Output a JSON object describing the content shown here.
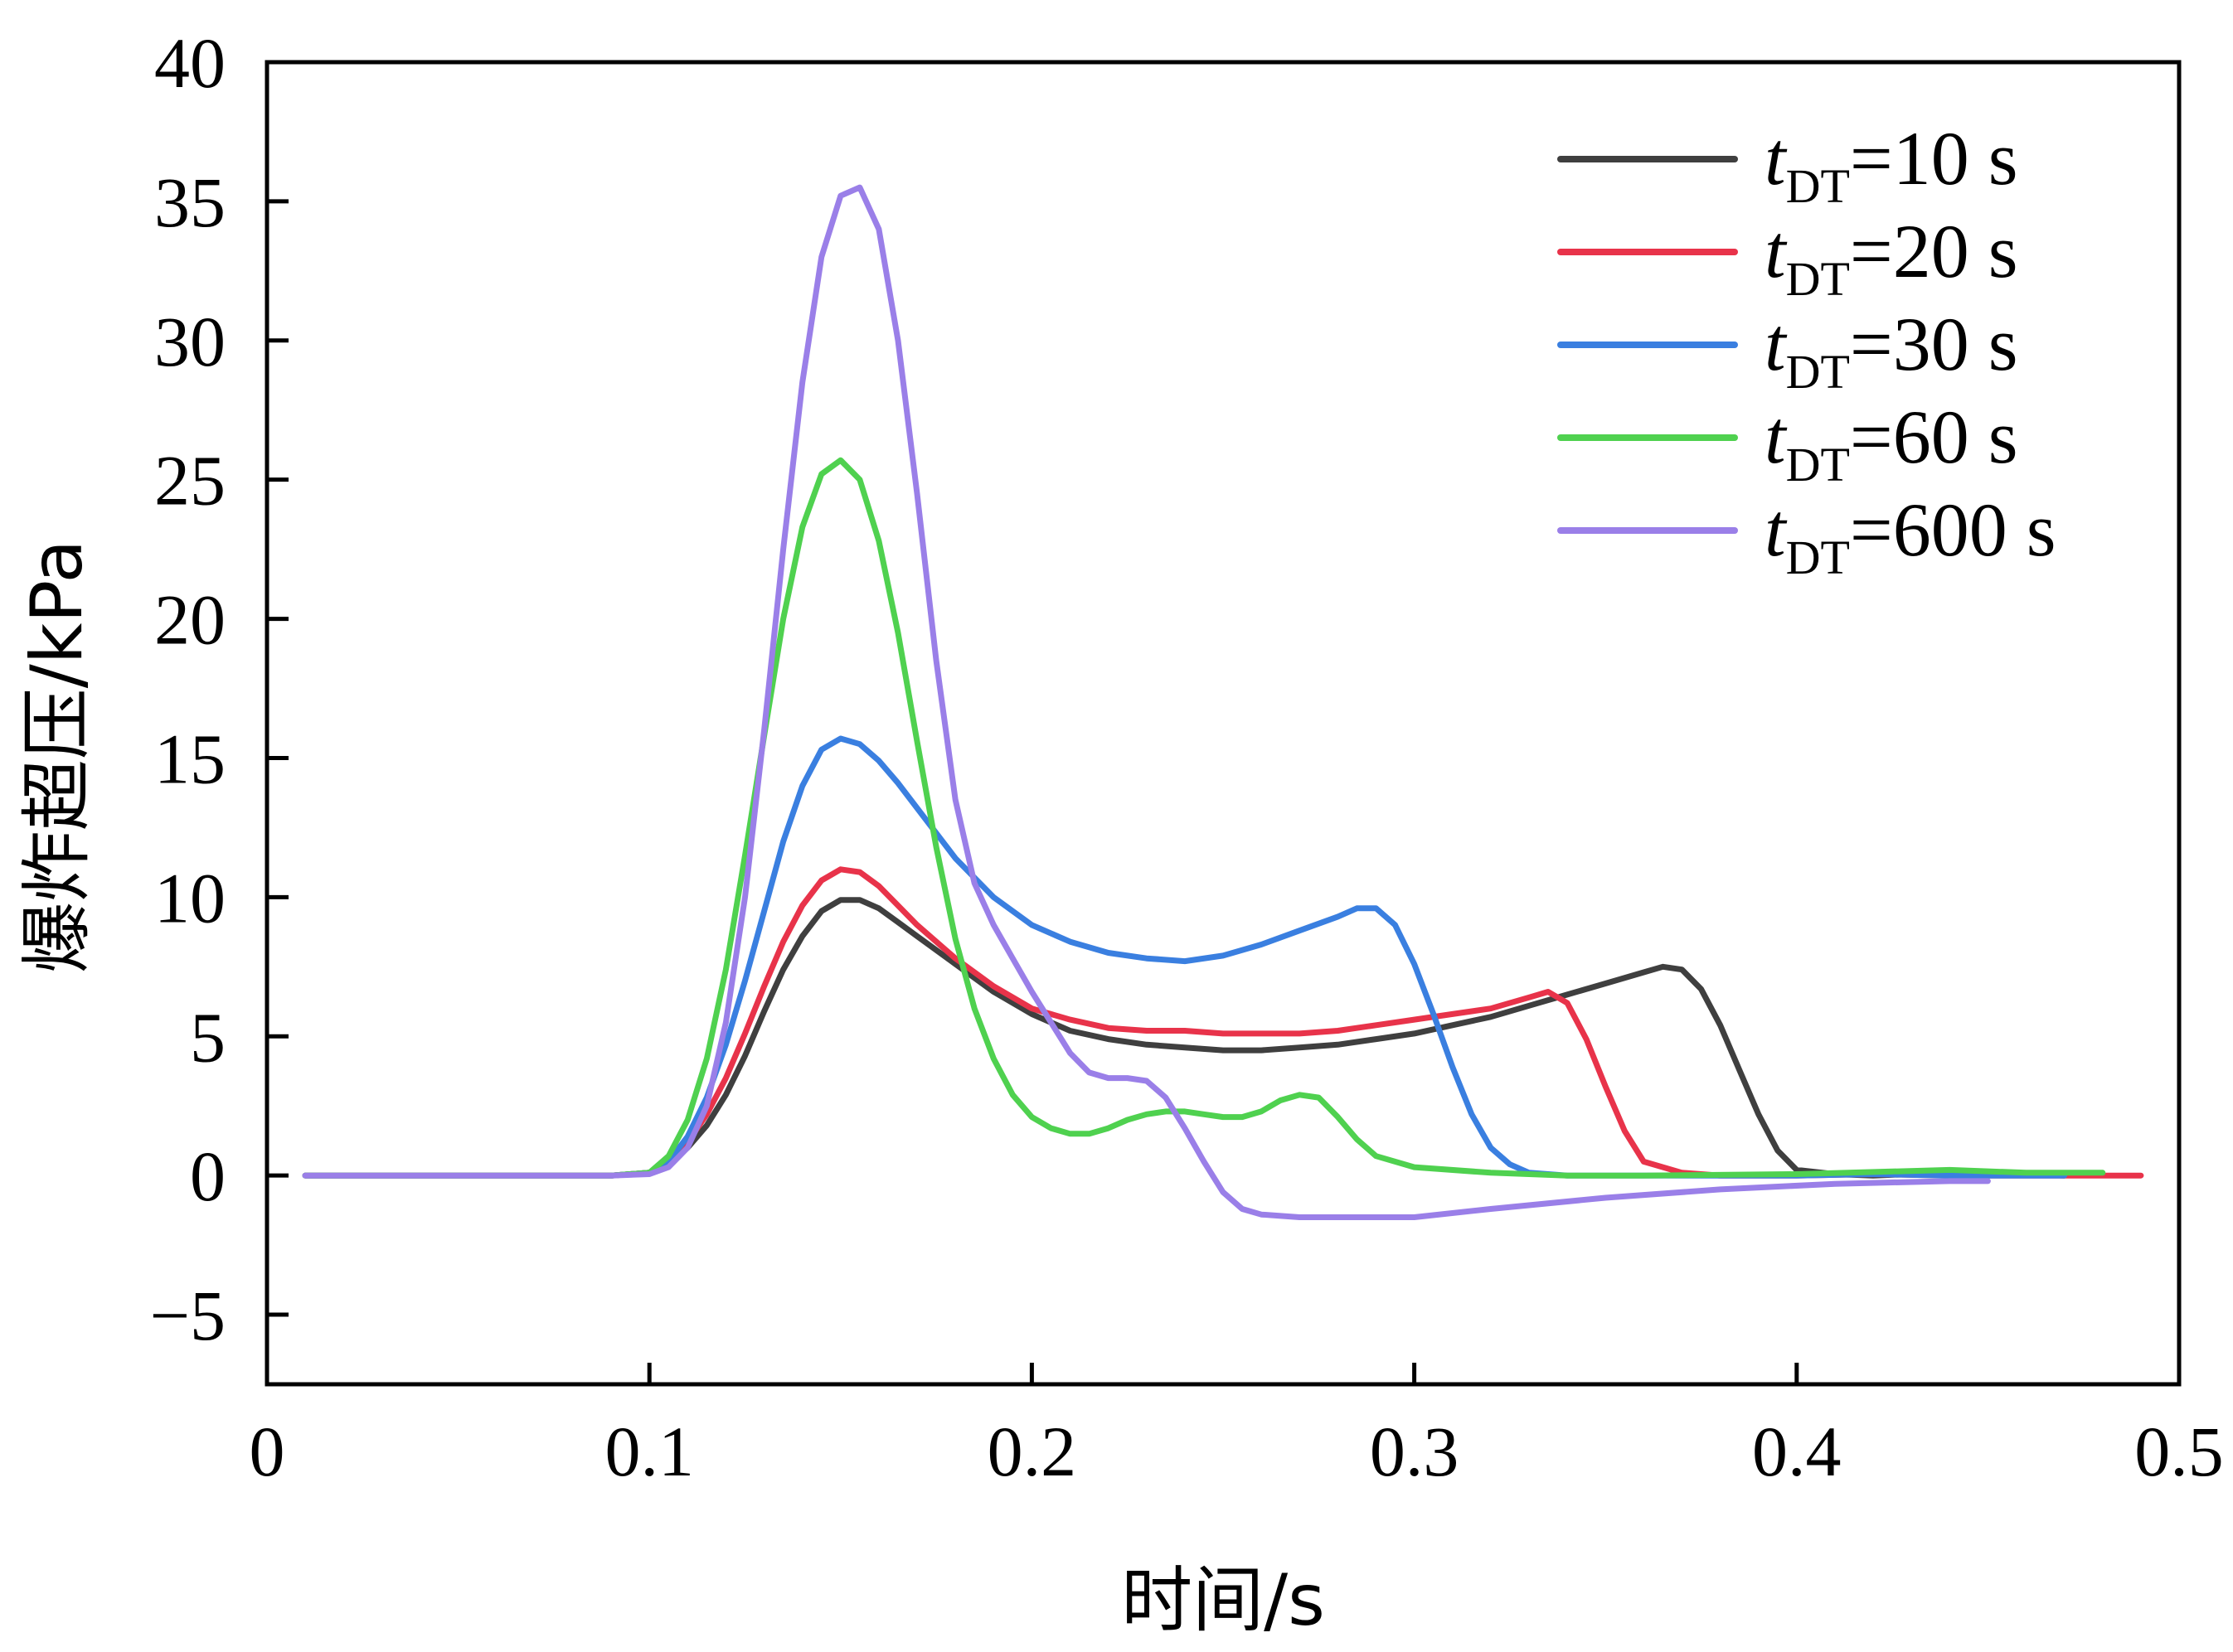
{
  "chart_data": {
    "type": "line",
    "title": "",
    "xlabel": "时间/s",
    "ylabel": "爆炸超压/kPa",
    "xlim": [
      0,
      0.5
    ],
    "ylim": [
      -7.5,
      40
    ],
    "xticks": [
      0,
      0.1,
      0.2,
      0.3,
      0.4,
      0.5
    ],
    "xtick_labels": [
      "0",
      "0.1",
      "0.2",
      "0.3",
      "0.4",
      "0.5"
    ],
    "yticks": [
      -5,
      0,
      5,
      10,
      15,
      20,
      25,
      30,
      35,
      40
    ],
    "ytick_labels": [
      "−5",
      "0",
      "5",
      "10",
      "15",
      "20",
      "25",
      "30",
      "35",
      "40"
    ],
    "grid": false,
    "legend_position": "top-right",
    "series": [
      {
        "name": "tDT=10 s",
        "legend": {
          "var": "t",
          "sub": "DT",
          "rest": "=10 s"
        },
        "color": "#3f3f3f",
        "x": [
          0.01,
          0.05,
          0.09,
          0.1,
          0.105,
          0.11,
          0.115,
          0.12,
          0.125,
          0.13,
          0.135,
          0.14,
          0.145,
          0.15,
          0.155,
          0.16,
          0.165,
          0.17,
          0.18,
          0.19,
          0.2,
          0.21,
          0.22,
          0.23,
          0.24,
          0.25,
          0.26,
          0.27,
          0.28,
          0.29,
          0.3,
          0.31,
          0.32,
          0.33,
          0.34,
          0.35,
          0.36,
          0.365,
          0.37,
          0.375,
          0.38,
          0.385,
          0.39,
          0.395,
          0.4,
          0.41,
          0.42,
          0.44,
          0.46,
          0.47
        ],
        "y": [
          0,
          0,
          0,
          0.1,
          0.4,
          1.0,
          1.8,
          2.9,
          4.3,
          5.9,
          7.4,
          8.6,
          9.5,
          9.9,
          9.9,
          9.6,
          9.1,
          8.6,
          7.6,
          6.6,
          5.8,
          5.2,
          4.9,
          4.7,
          4.6,
          4.5,
          4.5,
          4.6,
          4.7,
          4.9,
          5.1,
          5.4,
          5.7,
          6.1,
          6.5,
          6.9,
          7.3,
          7.5,
          7.4,
          6.7,
          5.4,
          3.8,
          2.2,
          0.9,
          0.2,
          0.05,
          0,
          0.1,
          0.05,
          0
        ]
      },
      {
        "name": "tDT=20 s",
        "legend": {
          "var": "t",
          "sub": "DT",
          "rest": "=20 s"
        },
        "color": "#e8334a",
        "x": [
          0.01,
          0.05,
          0.09,
          0.1,
          0.105,
          0.11,
          0.115,
          0.12,
          0.125,
          0.13,
          0.135,
          0.14,
          0.145,
          0.15,
          0.155,
          0.16,
          0.165,
          0.17,
          0.18,
          0.19,
          0.2,
          0.21,
          0.22,
          0.23,
          0.24,
          0.25,
          0.26,
          0.27,
          0.28,
          0.29,
          0.3,
          0.31,
          0.32,
          0.33,
          0.335,
          0.34,
          0.345,
          0.35,
          0.355,
          0.36,
          0.37,
          0.38,
          0.4,
          0.42,
          0.44,
          0.46,
          0.48,
          0.49
        ],
        "y": [
          0,
          0,
          0,
          0.1,
          0.5,
          1.2,
          2.2,
          3.5,
          5.1,
          6.8,
          8.4,
          9.7,
          10.6,
          11.0,
          10.9,
          10.4,
          9.7,
          9.0,
          7.8,
          6.8,
          6.0,
          5.6,
          5.3,
          5.2,
          5.2,
          5.1,
          5.1,
          5.1,
          5.2,
          5.4,
          5.6,
          5.8,
          6.0,
          6.4,
          6.6,
          6.2,
          4.9,
          3.2,
          1.6,
          0.5,
          0.1,
          0,
          0,
          0.05,
          0,
          0,
          0,
          0
        ]
      },
      {
        "name": "tDT=30 s",
        "legend": {
          "var": "t",
          "sub": "DT",
          "rest": "=30 s"
        },
        "color": "#3a7fe0",
        "x": [
          0.01,
          0.05,
          0.09,
          0.1,
          0.105,
          0.11,
          0.115,
          0.12,
          0.125,
          0.13,
          0.135,
          0.14,
          0.145,
          0.15,
          0.155,
          0.16,
          0.165,
          0.17,
          0.175,
          0.18,
          0.19,
          0.2,
          0.21,
          0.22,
          0.23,
          0.24,
          0.25,
          0.26,
          0.27,
          0.28,
          0.285,
          0.29,
          0.295,
          0.3,
          0.305,
          0.31,
          0.315,
          0.32,
          0.325,
          0.33,
          0.34,
          0.36,
          0.38,
          0.4,
          0.42,
          0.44,
          0.46,
          0.47
        ],
        "y": [
          0,
          0,
          0,
          0.1,
          0.5,
          1.4,
          2.8,
          4.7,
          7.0,
          9.5,
          12.0,
          14.0,
          15.3,
          15.7,
          15.5,
          14.9,
          14.1,
          13.2,
          12.3,
          11.4,
          10.0,
          9.0,
          8.4,
          8.0,
          7.8,
          7.7,
          7.9,
          8.3,
          8.8,
          9.3,
          9.6,
          9.6,
          9.0,
          7.6,
          5.8,
          3.9,
          2.2,
          1.0,
          0.4,
          0.1,
          0,
          0,
          0,
          0,
          0.05,
          0,
          0,
          0
        ]
      },
      {
        "name": "tDT=60 s",
        "legend": {
          "var": "t",
          "sub": "DT",
          "rest": "=60 s"
        },
        "color": "#4fd14f",
        "x": [
          0.01,
          0.05,
          0.09,
          0.1,
          0.105,
          0.11,
          0.115,
          0.12,
          0.125,
          0.13,
          0.135,
          0.14,
          0.145,
          0.15,
          0.155,
          0.16,
          0.165,
          0.17,
          0.175,
          0.18,
          0.185,
          0.19,
          0.195,
          0.2,
          0.205,
          0.21,
          0.215,
          0.22,
          0.225,
          0.23,
          0.235,
          0.24,
          0.245,
          0.25,
          0.255,
          0.26,
          0.265,
          0.27,
          0.275,
          0.28,
          0.285,
          0.29,
          0.3,
          0.32,
          0.34,
          0.36,
          0.4,
          0.44,
          0.46,
          0.48
        ],
        "y": [
          0,
          0,
          0,
          0.1,
          0.7,
          2.0,
          4.2,
          7.4,
          11.5,
          15.8,
          20.0,
          23.3,
          25.2,
          25.7,
          25.0,
          22.8,
          19.5,
          15.6,
          11.8,
          8.5,
          6.0,
          4.2,
          2.9,
          2.1,
          1.7,
          1.5,
          1.5,
          1.7,
          2.0,
          2.2,
          2.3,
          2.3,
          2.2,
          2.1,
          2.1,
          2.3,
          2.7,
          2.9,
          2.8,
          2.1,
          1.3,
          0.7,
          0.3,
          0.1,
          0,
          0,
          0.05,
          0.2,
          0.1,
          0.1
        ]
      },
      {
        "name": "tDT=600 s",
        "legend": {
          "var": "t",
          "sub": "DT",
          "rest": "=600 s"
        },
        "color": "#9a7fe8",
        "x": [
          0.01,
          0.05,
          0.09,
          0.1,
          0.105,
          0.11,
          0.115,
          0.12,
          0.125,
          0.13,
          0.135,
          0.14,
          0.145,
          0.15,
          0.155,
          0.16,
          0.165,
          0.17,
          0.175,
          0.18,
          0.185,
          0.19,
          0.195,
          0.2,
          0.205,
          0.21,
          0.215,
          0.22,
          0.225,
          0.23,
          0.235,
          0.24,
          0.245,
          0.25,
          0.255,
          0.26,
          0.27,
          0.28,
          0.3,
          0.32,
          0.35,
          0.38,
          0.41,
          0.44,
          0.45
        ],
        "y": [
          0,
          0,
          0,
          0.05,
          0.3,
          1.0,
          2.5,
          5.5,
          10.0,
          16.0,
          22.5,
          28.5,
          33.0,
          35.2,
          35.5,
          34.0,
          30.0,
          24.5,
          18.5,
          13.5,
          10.5,
          9.0,
          7.8,
          6.6,
          5.5,
          4.4,
          3.7,
          3.5,
          3.5,
          3.4,
          2.8,
          1.7,
          0.5,
          -0.6,
          -1.2,
          -1.4,
          -1.5,
          -1.5,
          -1.5,
          -1.2,
          -0.8,
          -0.5,
          -0.3,
          -0.2,
          -0.2
        ]
      }
    ]
  }
}
